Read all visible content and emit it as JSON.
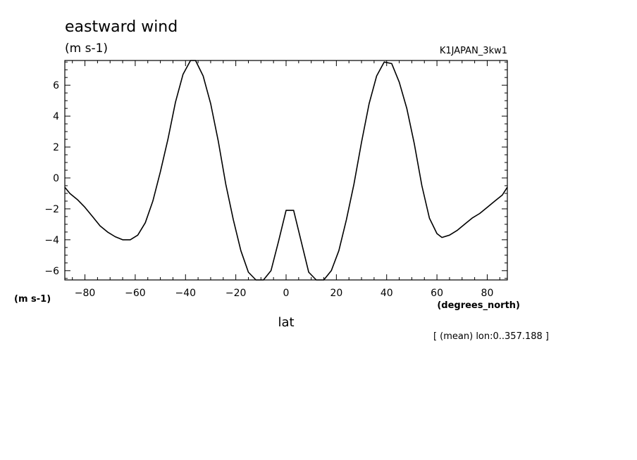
{
  "chart_data": {
    "type": "line",
    "title": "eastward wind",
    "units_label": "(m s-1)",
    "dataset": "K1JAPAN_3kw1",
    "ylabel": "(m s-1)",
    "xlabel": "lat",
    "xunits": "(degrees_north)",
    "footnote": "[ (mean) lon:0..357.188 ]",
    "xlim": [
      -88,
      88
    ],
    "ylim": [
      -6.6,
      7.6
    ],
    "x_ticks": [
      -80,
      -60,
      -40,
      -20,
      0,
      20,
      40,
      60,
      80
    ],
    "y_ticks": [
      -6,
      -4,
      -2,
      0,
      2,
      4,
      6
    ],
    "grid": false,
    "legend": "none",
    "series": [
      {
        "x": [
          -88,
          -86,
          -83,
          -80,
          -77,
          -74,
          -71,
          -68,
          -65,
          -62,
          -59,
          -56,
          -53,
          -50,
          -47,
          -44,
          -41,
          -38,
          -36,
          -33,
          -30,
          -27,
          -24,
          -21,
          -18,
          -15,
          -12,
          -9,
          -6,
          -3,
          0,
          3,
          6,
          9,
          12,
          15,
          18,
          21,
          24,
          27,
          30,
          33,
          36,
          39,
          42,
          45,
          48,
          51,
          54,
          57,
          60,
          62,
          65,
          68,
          71,
          74,
          77,
          80,
          83,
          86,
          88
        ],
        "y": [
          -0.6,
          -1.0,
          -1.4,
          -1.9,
          -2.5,
          -3.1,
          -3.5,
          -3.8,
          -4.0,
          -4.0,
          -3.7,
          -2.9,
          -1.5,
          0.4,
          2.5,
          4.9,
          6.7,
          7.6,
          7.6,
          6.6,
          4.8,
          2.4,
          -0.4,
          -2.7,
          -4.7,
          -6.1,
          -6.6,
          -6.6,
          -6.0,
          -4.1,
          -2.1,
          -2.1,
          -4.1,
          -6.1,
          -6.6,
          -6.6,
          -6.0,
          -4.7,
          -2.7,
          -0.4,
          2.3,
          4.8,
          6.6,
          7.5,
          7.4,
          6.2,
          4.5,
          2.2,
          -0.5,
          -2.6,
          -3.6,
          -3.85,
          -3.7,
          -3.4,
          -3.0,
          -2.6,
          -2.3,
          -1.9,
          -1.5,
          -1.1,
          -0.6
        ]
      }
    ]
  }
}
